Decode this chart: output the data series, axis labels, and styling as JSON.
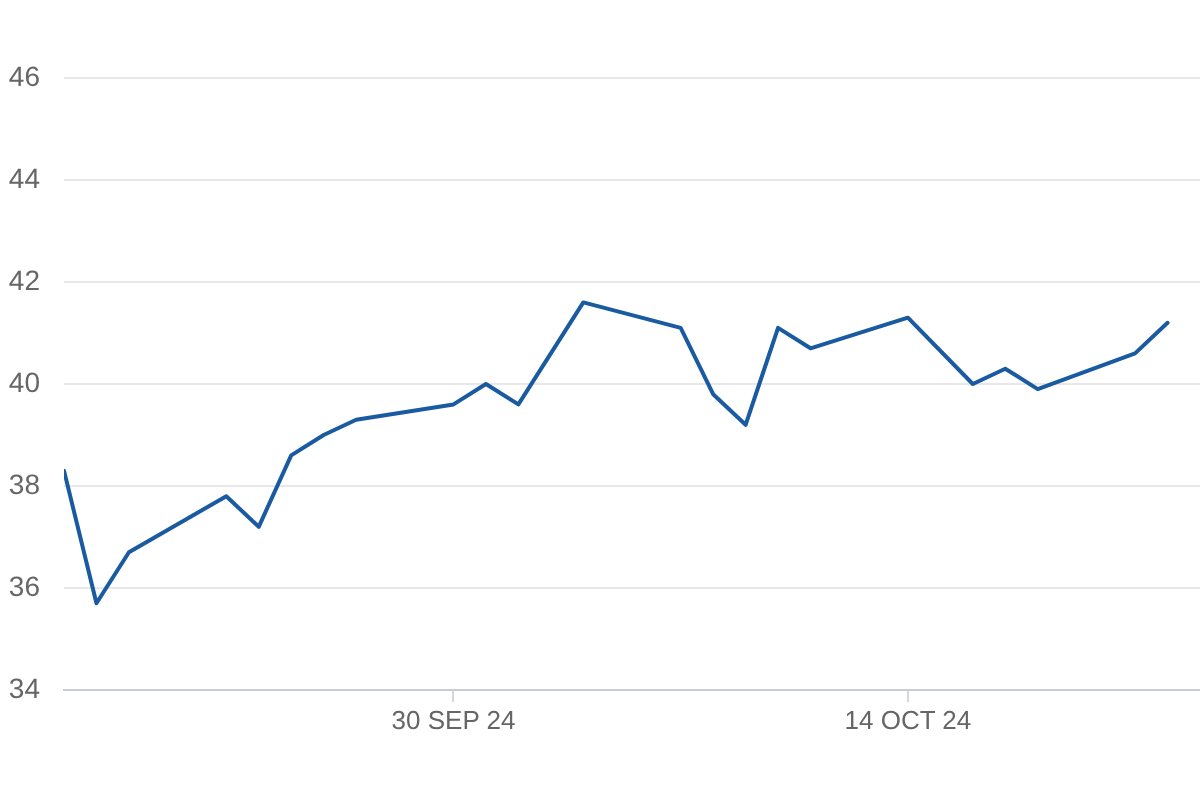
{
  "chart_data": {
    "type": "line",
    "x": [
      "2024-09-18",
      "2024-09-19",
      "2024-09-20",
      "2024-09-23",
      "2024-09-24",
      "2024-09-25",
      "2024-09-26",
      "2024-09-27",
      "2024-09-30",
      "2024-10-01",
      "2024-10-02",
      "2024-10-04",
      "2024-10-07",
      "2024-10-08",
      "2024-10-09",
      "2024-10-10",
      "2024-10-11",
      "2024-10-14",
      "2024-10-16",
      "2024-10-17",
      "2024-10-18",
      "2024-10-21",
      "2024-10-22"
    ],
    "values": [
      38.3,
      35.7,
      36.7,
      37.8,
      37.2,
      38.6,
      39.0,
      39.3,
      39.6,
      40.0,
      39.6,
      41.6,
      41.1,
      39.8,
      39.2,
      41.1,
      40.7,
      41.3,
      40.0,
      40.3,
      39.9,
      40.6,
      41.2
    ],
    "color": "#1a5aa0",
    "xlim": [
      "2024-09-18",
      "2024-10-23"
    ],
    "xticks": [
      {
        "value": "2024-09-30",
        "label": "30 SEP 24"
      },
      {
        "value": "2024-10-14",
        "label": "14 OCT 24"
      }
    ],
    "ylim": [
      34,
      46
    ],
    "yticks": [
      34,
      36,
      38,
      40,
      42,
      44,
      46
    ],
    "grid": "y"
  }
}
